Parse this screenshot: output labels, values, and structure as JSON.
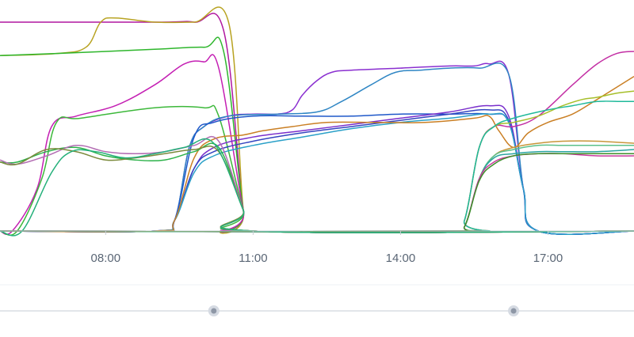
{
  "chart_data": {
    "type": "line",
    "x_unit": "hour of day",
    "xlim": [
      5.85,
      18.75
    ],
    "ylim": [
      0,
      100
    ],
    "grid": false,
    "legend": "none",
    "x_ticks": [
      {
        "value": 8,
        "label": "08:00"
      },
      {
        "value": 11,
        "label": "11:00"
      },
      {
        "value": 14,
        "label": "14:00"
      },
      {
        "value": 17,
        "label": "17:00"
      }
    ],
    "series": [
      {
        "color": "#b0179f",
        "points": [
          [
            5.85,
            100
          ],
          [
            9.0,
            100
          ],
          [
            9.8,
            100
          ],
          [
            10.4,
            96
          ],
          [
            10.8,
            10
          ],
          [
            11.0,
            0
          ],
          [
            18.75,
            0
          ]
        ]
      },
      {
        "color": "#b8a322",
        "points": [
          [
            5.85,
            84
          ],
          [
            7.0,
            85
          ],
          [
            7.6,
            88
          ],
          [
            7.9,
            100
          ],
          [
            8.2,
            102
          ],
          [
            9.0,
            100
          ],
          [
            9.8,
            100
          ],
          [
            10.5,
            100
          ],
          [
            10.8,
            10
          ],
          [
            11.0,
            0
          ],
          [
            18.75,
            0
          ]
        ]
      },
      {
        "color": "#2eb62c",
        "points": [
          [
            5.85,
            84
          ],
          [
            7.0,
            85
          ],
          [
            9.0,
            87
          ],
          [
            10.0,
            88
          ],
          [
            10.4,
            86
          ],
          [
            10.8,
            10
          ],
          [
            11.0,
            0
          ],
          [
            18.75,
            0
          ]
        ]
      },
      {
        "color": "#c41fb3",
        "points": [
          [
            5.85,
            0
          ],
          [
            6.1,
            0
          ],
          [
            6.6,
            20
          ],
          [
            6.9,
            50
          ],
          [
            7.4,
            55
          ],
          [
            8.2,
            60
          ],
          [
            9.0,
            70
          ],
          [
            9.6,
            80
          ],
          [
            10.0,
            81
          ],
          [
            10.3,
            78
          ],
          [
            10.8,
            10
          ],
          [
            11.0,
            0
          ],
          [
            18.75,
            0
          ]
        ]
      },
      {
        "color": "#3cb83a",
        "points": [
          [
            5.85,
            0
          ],
          [
            6.2,
            0
          ],
          [
            6.7,
            25
          ],
          [
            7.0,
            52
          ],
          [
            7.5,
            54
          ],
          [
            9.0,
            59
          ],
          [
            10.0,
            59
          ],
          [
            10.3,
            55
          ],
          [
            10.8,
            10
          ],
          [
            11.0,
            0
          ],
          [
            18.75,
            0
          ]
        ]
      },
      {
        "color": "#8a2fd0",
        "points": [
          [
            5.85,
            0
          ],
          [
            9.0,
            0
          ],
          [
            9.4,
            5
          ],
          [
            9.7,
            40
          ],
          [
            10.0,
            50
          ],
          [
            10.5,
            55
          ],
          [
            11.0,
            56
          ],
          [
            11.5,
            56
          ],
          [
            11.8,
            58
          ],
          [
            12.0,
            65
          ],
          [
            12.3,
            72
          ],
          [
            12.6,
            76
          ],
          [
            13.0,
            77
          ],
          [
            14.0,
            78
          ],
          [
            15.0,
            79
          ],
          [
            15.5,
            79
          ],
          [
            15.8,
            80
          ],
          [
            16.2,
            75
          ],
          [
            16.5,
            20
          ],
          [
            16.8,
            0
          ],
          [
            18.75,
            0
          ]
        ]
      },
      {
        "color": "#2f86c4",
        "points": [
          [
            5.85,
            0
          ],
          [
            9.0,
            0
          ],
          [
            9.4,
            5
          ],
          [
            9.7,
            40
          ],
          [
            10.0,
            50
          ],
          [
            10.5,
            55
          ],
          [
            11.5,
            56
          ],
          [
            12.3,
            57
          ],
          [
            12.8,
            62
          ],
          [
            13.4,
            70
          ],
          [
            13.9,
            76
          ],
          [
            14.4,
            77
          ],
          [
            15.0,
            78
          ],
          [
            15.6,
            78
          ],
          [
            16.2,
            75
          ],
          [
            16.5,
            20
          ],
          [
            16.8,
            0
          ],
          [
            18.75,
            0
          ]
        ]
      },
      {
        "color": "#1f58c9",
        "points": [
          [
            5.85,
            0
          ],
          [
            9.0,
            0
          ],
          [
            9.4,
            5
          ],
          [
            9.8,
            45
          ],
          [
            10.2,
            52
          ],
          [
            11.0,
            55
          ],
          [
            12.0,
            55
          ],
          [
            13.0,
            55
          ],
          [
            14.0,
            56
          ],
          [
            15.0,
            56
          ],
          [
            15.8,
            56
          ],
          [
            16.2,
            52
          ],
          [
            16.5,
            20
          ],
          [
            16.8,
            0
          ],
          [
            18.75,
            0
          ]
        ]
      },
      {
        "color": "#7a2fcc",
        "points": [
          [
            5.85,
            0
          ],
          [
            9.0,
            0
          ],
          [
            9.4,
            5
          ],
          [
            9.8,
            30
          ],
          [
            10.2,
            40
          ],
          [
            11.0,
            45
          ],
          [
            12.0,
            48
          ],
          [
            13.0,
            51
          ],
          [
            14.0,
            54
          ],
          [
            15.0,
            57
          ],
          [
            15.8,
            60
          ],
          [
            16.2,
            55
          ],
          [
            16.5,
            20
          ],
          [
            16.8,
            0
          ],
          [
            18.75,
            0
          ]
        ]
      },
      {
        "color": "#3545c0",
        "points": [
          [
            5.85,
            0
          ],
          [
            9.0,
            0
          ],
          [
            9.4,
            5
          ],
          [
            9.8,
            30
          ],
          [
            10.2,
            38
          ],
          [
            11.0,
            43
          ],
          [
            12.0,
            47
          ],
          [
            13.0,
            50
          ],
          [
            14.0,
            53
          ],
          [
            15.0,
            56
          ],
          [
            15.8,
            58
          ],
          [
            16.2,
            53
          ],
          [
            16.5,
            20
          ],
          [
            16.8,
            0
          ],
          [
            18.75,
            0
          ]
        ]
      },
      {
        "color": "#2aa0c8",
        "points": [
          [
            5.85,
            0
          ],
          [
            9.0,
            0
          ],
          [
            9.4,
            5
          ],
          [
            9.8,
            28
          ],
          [
            10.2,
            36
          ],
          [
            11.0,
            41
          ],
          [
            12.0,
            45
          ],
          [
            13.0,
            49
          ],
          [
            14.0,
            52
          ],
          [
            15.0,
            54
          ],
          [
            15.8,
            56
          ],
          [
            16.2,
            52
          ],
          [
            16.5,
            20
          ],
          [
            16.8,
            0
          ],
          [
            18.75,
            0
          ]
        ]
      },
      {
        "color": "#ca7f24",
        "points": [
          [
            5.85,
            0
          ],
          [
            9.0,
            0
          ],
          [
            9.4,
            5
          ],
          [
            9.8,
            35
          ],
          [
            10.2,
            44
          ],
          [
            10.8,
            46
          ],
          [
            11.2,
            48
          ],
          [
            11.8,
            50
          ],
          [
            12.5,
            52
          ],
          [
            13.5,
            52
          ],
          [
            14.5,
            52
          ],
          [
            15.5,
            54
          ],
          [
            15.8,
            55
          ],
          [
            16.0,
            48
          ],
          [
            16.3,
            40
          ],
          [
            16.6,
            47
          ],
          [
            17.0,
            52
          ],
          [
            17.5,
            56
          ],
          [
            18.0,
            63
          ],
          [
            18.75,
            74
          ]
        ]
      },
      {
        "color": "#c32fa4",
        "points": [
          [
            5.85,
            0
          ],
          [
            15.0,
            0
          ],
          [
            15.3,
            5
          ],
          [
            15.6,
            40
          ],
          [
            15.9,
            50
          ],
          [
            16.3,
            50
          ],
          [
            16.8,
            55
          ],
          [
            17.5,
            70
          ],
          [
            18.0,
            80
          ],
          [
            18.4,
            85
          ],
          [
            18.75,
            86
          ]
        ]
      },
      {
        "color": "#a6bf2a",
        "points": [
          [
            5.85,
            0
          ],
          [
            15.0,
            0
          ],
          [
            15.3,
            5
          ],
          [
            15.6,
            40
          ],
          [
            15.9,
            50
          ],
          [
            16.3,
            52
          ],
          [
            16.8,
            55
          ],
          [
            17.3,
            60
          ],
          [
            17.7,
            63
          ],
          [
            18.0,
            64
          ],
          [
            18.4,
            66
          ],
          [
            18.75,
            67
          ]
        ]
      },
      {
        "color": "#1fb99a",
        "points": [
          [
            5.85,
            0
          ],
          [
            15.0,
            0
          ],
          [
            15.3,
            5
          ],
          [
            15.6,
            40
          ],
          [
            15.9,
            50
          ],
          [
            16.3,
            54
          ],
          [
            17.0,
            58
          ],
          [
            17.5,
            60
          ],
          [
            18.0,
            62
          ],
          [
            18.5,
            62
          ],
          [
            18.75,
            62
          ]
        ]
      },
      {
        "color": "#c8963a",
        "points": [
          [
            5.85,
            0
          ],
          [
            15.0,
            0
          ],
          [
            15.3,
            2
          ],
          [
            15.6,
            25
          ],
          [
            15.9,
            36
          ],
          [
            16.3,
            40
          ],
          [
            16.8,
            42
          ],
          [
            17.3,
            43
          ],
          [
            18.0,
            43
          ],
          [
            18.75,
            42
          ]
        ]
      },
      {
        "color": "#5bc08a",
        "points": [
          [
            5.85,
            0
          ],
          [
            15.0,
            0
          ],
          [
            15.3,
            2
          ],
          [
            15.6,
            25
          ],
          [
            15.9,
            36
          ],
          [
            16.3,
            39
          ],
          [
            16.8,
            41
          ],
          [
            17.3,
            41
          ],
          [
            18.0,
            41
          ],
          [
            18.75,
            41
          ]
        ]
      },
      {
        "color": "#2aa4a0",
        "points": [
          [
            5.85,
            0
          ],
          [
            15.0,
            0
          ],
          [
            15.3,
            2
          ],
          [
            15.6,
            25
          ],
          [
            15.9,
            35
          ],
          [
            16.3,
            37
          ],
          [
            16.8,
            38
          ],
          [
            17.3,
            38
          ],
          [
            18.0,
            38
          ],
          [
            18.75,
            39
          ]
        ]
      },
      {
        "color": "#c8399c",
        "points": [
          [
            5.85,
            0
          ],
          [
            15.0,
            0
          ],
          [
            15.3,
            2
          ],
          [
            15.6,
            25
          ],
          [
            15.9,
            33
          ],
          [
            16.3,
            36
          ],
          [
            16.8,
            37
          ],
          [
            17.3,
            37
          ],
          [
            18.0,
            36
          ],
          [
            18.75,
            36
          ]
        ]
      },
      {
        "color": "#3c8f2a",
        "points": [
          [
            5.85,
            0
          ],
          [
            15.0,
            0
          ],
          [
            15.3,
            2
          ],
          [
            15.6,
            24
          ],
          [
            15.9,
            32
          ],
          [
            16.3,
            36
          ],
          [
            16.8,
            37
          ],
          [
            17.3,
            37
          ],
          [
            18.0,
            37
          ],
          [
            18.75,
            37
          ]
        ]
      },
      {
        "color": "#2cb24a",
        "points": [
          [
            5.85,
            33
          ],
          [
            6.2,
            33
          ],
          [
            6.8,
            38
          ],
          [
            7.4,
            40
          ],
          [
            8.0,
            36
          ],
          [
            8.6,
            34
          ],
          [
            9.2,
            34
          ],
          [
            9.8,
            38
          ],
          [
            10.3,
            40
          ],
          [
            10.8,
            10
          ],
          [
            11.0,
            0
          ],
          [
            18.75,
            0
          ]
        ]
      },
      {
        "color": "#b36db3",
        "points": [
          [
            5.85,
            34
          ],
          [
            6.2,
            32
          ],
          [
            6.8,
            36
          ],
          [
            7.4,
            41
          ],
          [
            8.0,
            38
          ],
          [
            8.6,
            37
          ],
          [
            9.2,
            38
          ],
          [
            9.8,
            41
          ],
          [
            10.3,
            43
          ],
          [
            10.8,
            10
          ],
          [
            11.0,
            0
          ],
          [
            18.75,
            0
          ]
        ]
      },
      {
        "color": "#7b8a3c",
        "points": [
          [
            5.85,
            33
          ],
          [
            6.2,
            32
          ],
          [
            6.8,
            39
          ],
          [
            7.4,
            38
          ],
          [
            8.0,
            34
          ],
          [
            8.6,
            35
          ],
          [
            9.2,
            37
          ],
          [
            9.8,
            39
          ],
          [
            10.3,
            38
          ],
          [
            10.8,
            10
          ],
          [
            11.0,
            0
          ],
          [
            18.75,
            0
          ]
        ]
      },
      {
        "color": "#24b07a",
        "points": [
          [
            5.85,
            0
          ],
          [
            6.3,
            0
          ],
          [
            6.9,
            28
          ],
          [
            7.3,
            38
          ],
          [
            7.8,
            38
          ],
          [
            8.4,
            35
          ],
          [
            9.0,
            37
          ],
          [
            9.6,
            40
          ],
          [
            10.2,
            42
          ],
          [
            10.8,
            10
          ],
          [
            11.0,
            0
          ],
          [
            18.75,
            0
          ]
        ]
      }
    ],
    "range_slider": {
      "handles": [
        10.2,
        16.3
      ]
    }
  }
}
